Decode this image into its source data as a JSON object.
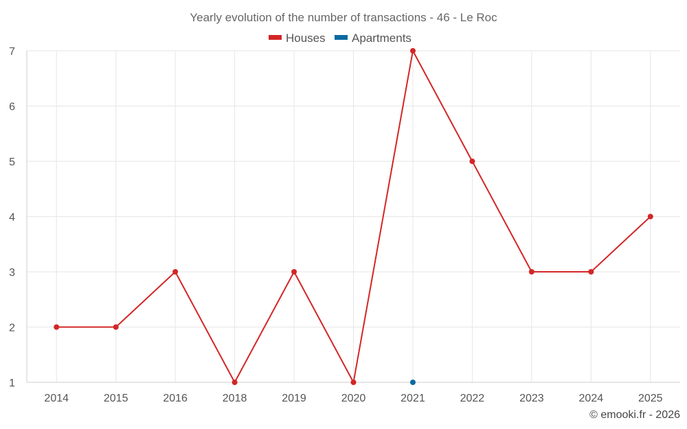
{
  "chart_data": {
    "type": "line",
    "title": "Yearly evolution of the number of transactions - 46 - Le Roc",
    "categories": [
      "2014",
      "2015",
      "2016",
      "2018",
      "2019",
      "2020",
      "2021",
      "2022",
      "2023",
      "2024",
      "2025"
    ],
    "series": [
      {
        "name": "Houses",
        "color": "#d32626",
        "values": [
          2,
          2,
          3,
          1,
          3,
          1,
          7,
          5,
          3,
          3,
          4
        ]
      },
      {
        "name": "Apartments",
        "color": "#0a6aa1",
        "values": [
          null,
          null,
          null,
          null,
          null,
          null,
          1,
          null,
          null,
          null,
          null
        ]
      }
    ],
    "y_ticks": [
      1,
      2,
      3,
      4,
      5,
      6,
      7
    ],
    "ylim": [
      1,
      7
    ],
    "grid": true,
    "legend_position": "top-center",
    "xlabel": "",
    "ylabel": ""
  },
  "credit": "© emooki.fr - 2026"
}
